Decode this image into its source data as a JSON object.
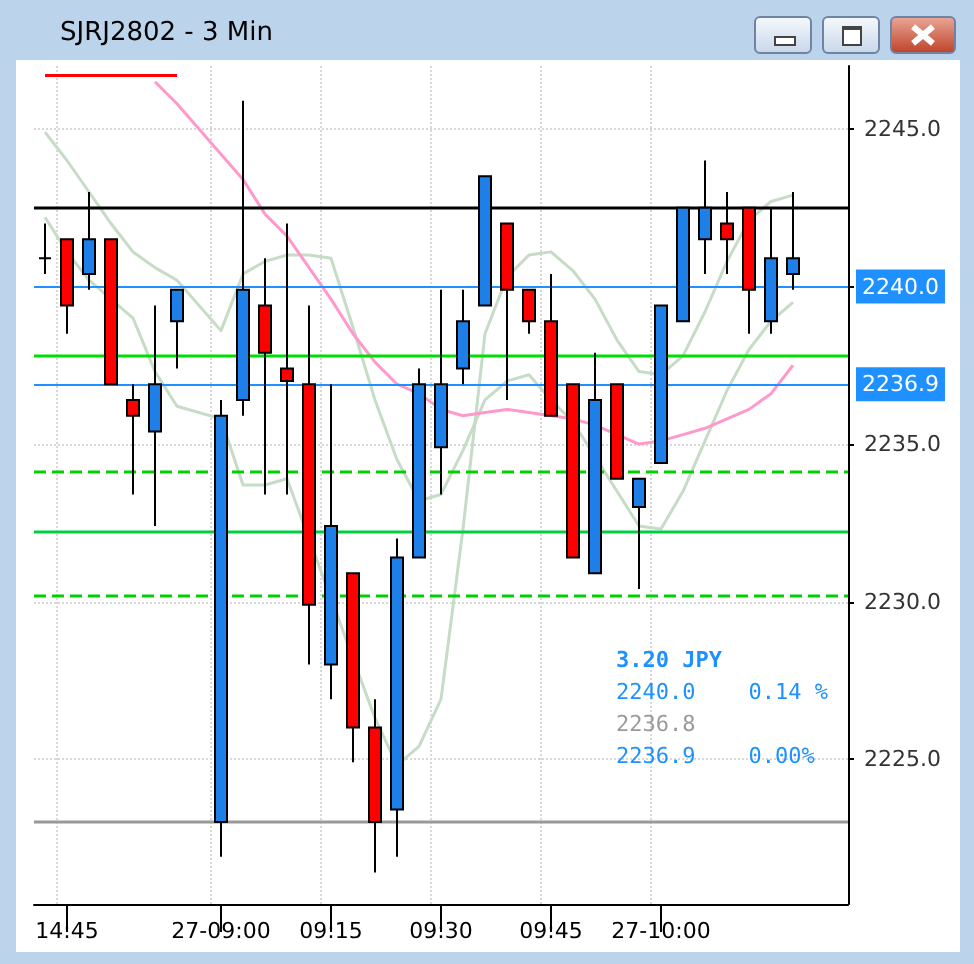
{
  "chart_data": {
    "type": "candlestick",
    "title": "SJRJ2802 - 3 Min",
    "categories": [
      null,
      "14:45",
      null,
      null,
      null,
      null,
      null,
      null,
      "27-09:00",
      null,
      null,
      null,
      null,
      "09:15",
      null,
      null,
      null,
      null,
      "09:30",
      null,
      null,
      null,
      null,
      "09:45",
      null,
      null,
      null,
      null,
      "27-10:00",
      null,
      null,
      null,
      null,
      null,
      null,
      null,
      null
    ],
    "ohlc": [
      [
        2240.9,
        2242.0,
        2240.4,
        2240.9
      ],
      [
        2241.5,
        2241.5,
        2238.5,
        2239.4
      ],
      [
        2240.4,
        2243.0,
        2239.9,
        2241.5
      ],
      [
        2241.5,
        2241.5,
        2236.9,
        2236.9
      ],
      [
        2236.4,
        2236.9,
        2233.4,
        2235.9
      ],
      [
        2235.4,
        2239.4,
        2232.4,
        2236.9
      ],
      [
        2238.9,
        2239.9,
        2237.4,
        2239.9
      ],
      null,
      [
        2223.0,
        2236.4,
        2221.9,
        2235.9
      ],
      [
        2236.4,
        2245.9,
        2235.9,
        2239.9
      ],
      [
        2239.4,
        2240.9,
        2233.4,
        2237.9
      ],
      [
        2237.4,
        2242.0,
        2233.4,
        2237.0
      ],
      [
        2236.9,
        2239.4,
        2228.0,
        2229.9
      ],
      [
        2228.0,
        2236.9,
        2226.9,
        2232.4
      ],
      [
        2230.9,
        2230.9,
        2224.9,
        2226.0
      ],
      [
        2226.0,
        2226.9,
        2221.4,
        2223.0
      ],
      [
        2223.4,
        2232.0,
        2221.9,
        2231.4
      ],
      [
        2231.4,
        2237.4,
        2231.4,
        2236.9
      ],
      [
        2234.9,
        2239.9,
        2233.4,
        2236.9
      ],
      [
        2237.4,
        2239.9,
        2236.9,
        2238.9
      ],
      [
        2239.4,
        2243.5,
        2239.4,
        2243.5
      ],
      [
        2242.0,
        2242.0,
        2236.4,
        2239.9
      ],
      [
        2239.9,
        2239.9,
        2238.5,
        2238.9
      ],
      [
        2238.9,
        2240.4,
        2235.9,
        2235.9
      ],
      [
        2236.9,
        2236.9,
        2231.4,
        2231.4
      ],
      [
        2230.9,
        2237.9,
        2230.9,
        2236.4
      ],
      [
        2236.9,
        2236.9,
        2233.9,
        2233.9
      ],
      [
        2233.0,
        2233.9,
        2230.4,
        2233.9
      ],
      [
        2234.4,
        2239.4,
        2234.4,
        2239.4
      ],
      [
        2238.9,
        2242.5,
        2238.9,
        2242.5
      ],
      [
        2241.5,
        2244.0,
        2240.4,
        2242.5
      ],
      [
        2242.0,
        2243.0,
        2240.4,
        2241.5
      ],
      [
        2242.5,
        2242.5,
        2238.5,
        2239.9
      ],
      [
        2238.9,
        2242.5,
        2238.5,
        2240.9
      ],
      [
        2240.4,
        2243.0,
        2239.9,
        2240.9
      ],
      null,
      null
    ],
    "colors": [
      "#000000",
      "#ff0000",
      "#1e7fe8",
      "#ff0000",
      "#ff0000",
      "#1e7fe8",
      "#1e7fe8",
      null,
      "#1e7fe8",
      "#1e7fe8",
      "#ff0000",
      "#ff0000",
      "#ff0000",
      "#1e7fe8",
      "#ff0000",
      "#ff0000",
      "#1e7fe8",
      "#1e7fe8",
      "#1e7fe8",
      "#1e7fe8",
      "#1e7fe8",
      "#ff0000",
      "#ff0000",
      "#ff0000",
      "#ff0000",
      "#1e7fe8",
      "#ff0000",
      "#1e7fe8",
      "#1e7fe8",
      "#1e7fe8",
      "#1e7fe8",
      "#ff0000",
      "#ff0000",
      "#1e7fe8",
      "#1e7fe8",
      null,
      null
    ],
    "series": [
      {
        "type": "line",
        "color": "#c6dcc6",
        "values": [
          2244.9,
          2244.0,
          2243.0,
          2242.0,
          2241.1,
          2240.6,
          2240.2,
          null,
          2238.6,
          2240.4,
          2240.8,
          2241.0,
          2241.0,
          2240.9,
          2238.7,
          2236.4,
          2234.5,
          2233.2,
          2233.4,
          2234.8,
          2236.4,
          2237.0,
          2237.2,
          2236.4,
          2235.7,
          2234.6,
          2233.5,
          2232.4,
          2232.3,
          2233.5,
          2235.1,
          2236.7,
          2238.0,
          2238.9,
          2239.5,
          null,
          null
        ]
      },
      {
        "type": "line",
        "color": "#c6dcc6",
        "values": [
          2242.2,
          2241.1,
          2240.2,
          2239.6,
          2239.0,
          2237.3,
          2236.2,
          null,
          2235.8,
          2233.7,
          2233.7,
          2233.9,
          null,
          null,
          null,
          2226.3,
          2224.8,
          2225.4,
          2226.9,
          2232.3,
          2238.5,
          2240.3,
          2241.0,
          2241.1,
          2240.5,
          2239.6,
          2238.3,
          2237.3,
          2237.2,
          2237.8,
          2239.2,
          2240.8,
          2242.1,
          2242.7,
          2242.9,
          null,
          null
        ]
      },
      {
        "type": "line",
        "color": "#ff99cc",
        "values": [
          null,
          null,
          null,
          null,
          null,
          2246.5,
          2245.8,
          null,
          2244.2,
          2243.4,
          2242.3,
          2241.6,
          2240.6,
          2239.6,
          2238.5,
          2237.6,
          2236.9,
          2236.6,
          2236.1,
          2235.9,
          2236.0,
          2236.1,
          2236.0,
          2235.9,
          2235.8,
          2235.6,
          2235.3,
          2235.0,
          2235.1,
          2235.3,
          2235.5,
          2235.8,
          2236.1,
          2236.6,
          2237.5,
          null,
          null
        ]
      },
      {
        "type": "line",
        "color": "#ff0000",
        "values": [
          2246.7,
          2246.7,
          2246.7,
          2246.7,
          2246.7,
          2246.7,
          2246.7,
          null,
          null,
          null,
          null,
          null,
          null,
          null,
          null,
          null,
          null,
          null,
          null,
          null,
          null,
          null,
          null,
          null,
          null,
          null,
          null,
          null,
          null,
          null,
          null,
          null,
          null,
          null,
          null,
          null,
          null
        ]
      }
    ],
    "marker": "none",
    "ylim": [
      2220.4,
      2247.0
    ],
    "yticks": [
      {
        "value": 2225,
        "label": "2225.0"
      },
      {
        "value": 2230,
        "label": "2230.0"
      },
      {
        "value": 2235,
        "label": "2235.0"
      },
      {
        "value": 2240,
        "label": "2240.0"
      },
      {
        "value": 2245,
        "label": "2245.0"
      }
    ],
    "grid": true,
    "ref_lines": [
      {
        "axis": "y",
        "value": 2242.5,
        "color": "#000000"
      },
      {
        "axis": "y",
        "value": 2237.8,
        "color": "#00e000"
      },
      {
        "axis": "y",
        "value": 2234.1,
        "color": "#00d000",
        "line_style": "dashed"
      },
      {
        "axis": "y",
        "value": 2232.2,
        "color": "#00d040"
      },
      {
        "axis": "y",
        "value": 2230.2,
        "color": "#00d000",
        "line_style": "dashed"
      },
      {
        "axis": "y",
        "value": 2223.0,
        "color": "#999999"
      },
      {
        "axis": "y",
        "value": 2240.0,
        "label": "2240.0",
        "color": "#1e90ff"
      },
      {
        "axis": "y",
        "value": 2236.9,
        "label": "2236.9",
        "color": "#1e90ff"
      }
    ],
    "annotations": [
      "3.20 JPY",
      "2240.0    0.14 %",
      "2236.8",
      "2236.9    0.00%"
    ]
  }
}
